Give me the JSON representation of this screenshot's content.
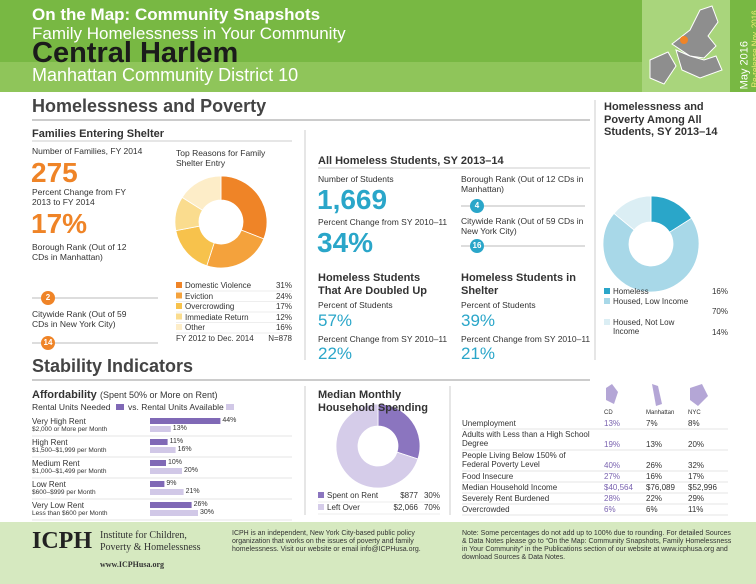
{
  "header": {
    "series": "On the Map: Community Snapshots",
    "subtitle": "Family Homelessness in Your Community",
    "title": "Central Harlem",
    "district": "Manhattan Community District 10",
    "date": "May 2016",
    "rerelease": "Re-release Nov. 2016"
  },
  "poverty": {
    "heading": "Homelessness and Poverty",
    "families": {
      "title": "Families Entering Shelter",
      "count_label": "Number of Families, FY 2014",
      "count": "275",
      "change_label": "Percent Change from FY 2013 to FY 2014",
      "change": "17%",
      "borough_label": "Borough Rank (Out of 12 CDs in Manhattan)",
      "borough_rank": 2,
      "city_label": "Citywide Rank (Out of 59 CDs in New York City)",
      "city_rank": 14,
      "reasons": {
        "title": "Top Reasons for Family Shelter Entry",
        "categories": [
          "Domestic Violence",
          "Eviction",
          "Overcrowding",
          "Immediate Return",
          "Other"
        ],
        "values": [
          31,
          24,
          17,
          12,
          16
        ],
        "value_labels": [
          "31%",
          "24%",
          "17%",
          "12%",
          "16%"
        ],
        "colors": [
          "#ef8427",
          "#f4a23c",
          "#f7c24c",
          "#fadc8e",
          "#fdedc8"
        ],
        "period": "FY 2012 to Dec. 2014",
        "n": "N=878"
      }
    },
    "students": {
      "title": "All Homeless Students, SY 2013–14",
      "count_label": "Number of Students",
      "count": "1,669",
      "change_label": "Percent Change from SY 2010–11",
      "change": "34%",
      "borough_label": "Borough Rank (Out of 12 CDs in Manhattan)",
      "borough_rank": 4,
      "city_label": "Citywide Rank (Out of 59 CDs in New York City)",
      "city_rank": 16,
      "doubled": {
        "title": "Homeless Students That Are Doubled Up",
        "pct_label": "Percent of Students",
        "pct": "57%",
        "change_label": "Percent Change from SY 2010–11",
        "change": "22%"
      },
      "shelter": {
        "title": "Homeless Students in Shelter",
        "pct_label": "Percent of Students",
        "pct": "39%",
        "change_label": "Percent Change from SY 2010–11",
        "change": "21%"
      }
    },
    "among": {
      "title": "Homelessness and Poverty Among All Students, SY 2013–14",
      "categories": [
        "Homeless",
        "Housed, Low Income",
        "Housed, Not Low Income"
      ],
      "values": [
        16,
        70,
        14
      ],
      "value_labels": [
        "16%",
        "70%",
        "14%"
      ],
      "colors": [
        "#2aa6c9",
        "#a8d8e8",
        "#dbeef4"
      ]
    }
  },
  "stability": {
    "heading": "Stability Indicators",
    "affordability": {
      "title": "Affordability",
      "title_note": "(Spent 50% or More on Rent)",
      "legend": [
        "Rental Units Needed",
        "vs. Rental Units Available"
      ],
      "colors": [
        "#8069b6",
        "#d1c8e7"
      ],
      "categories": [
        "Very High Rent",
        "High Rent",
        "Medium Rent",
        "Low Rent",
        "Very Low Rent"
      ],
      "ranges": [
        "$2,000 or More per Month",
        "$1,500–$1,999 per Month",
        "$1,000–$1,499 per Month",
        "$600–$999 per Month",
        "Less than $600 per Month"
      ],
      "needed": [
        44,
        11,
        10,
        9,
        26
      ],
      "needed_labels": [
        "44%",
        "11%",
        "10%",
        "9%",
        "26%"
      ],
      "available": [
        13,
        16,
        20,
        21,
        30
      ],
      "available_labels": [
        "13%",
        "16%",
        "20%",
        "21%",
        "30%"
      ]
    },
    "spending": {
      "title": "Median Monthly Household Spending",
      "categories": [
        "Spent on Rent",
        "Left Over"
      ],
      "amounts": [
        "$877",
        "$2,066"
      ],
      "values": [
        30,
        70
      ],
      "value_labels": [
        "30%",
        "70%"
      ],
      "colors": [
        "#8b75bf",
        "#d5cce9"
      ]
    },
    "indicators": {
      "columns": [
        "CD",
        "Manhattan",
        "NYC"
      ],
      "rows": [
        {
          "label": "Unemployment",
          "values": [
            "13%",
            "7%",
            "8%"
          ]
        },
        {
          "label": "Adults with Less than a High School Degree",
          "values": [
            "19%",
            "13%",
            "20%"
          ]
        },
        {
          "label": "People Living Below 150% of Federal Poverty Level",
          "values": [
            "40%",
            "26%",
            "32%"
          ]
        },
        {
          "label": "Food Insecure",
          "values": [
            "27%",
            "16%",
            "17%"
          ]
        },
        {
          "label": "Median Household Income",
          "values": [
            "$40,564",
            "$76,089",
            "$52,996"
          ]
        },
        {
          "label": "Severely Rent Burdened",
          "values": [
            "28%",
            "22%",
            "29%"
          ]
        },
        {
          "label": "Overcrowded",
          "values": [
            "6%",
            "6%",
            "11%"
          ]
        }
      ]
    }
  },
  "footer": {
    "logo": "ICPH",
    "org": "Institute for Children, Poverty & Homelessness",
    "url": "www.ICPHusa.org",
    "about": "ICPH is an independent, New York City-based public policy organization that works on the issues of poverty and family homelessness. Visit our website or email info@ICPHusa.org.",
    "note": "Note: Some percentages do not add up to 100% due to rounding. For detailed Sources & Data Notes please go to “On the Map: Community Snapshots, Family Homelessness in Your Community” in the Publications section of our website at www.icphusa.org and download Sources & Data Notes."
  }
}
